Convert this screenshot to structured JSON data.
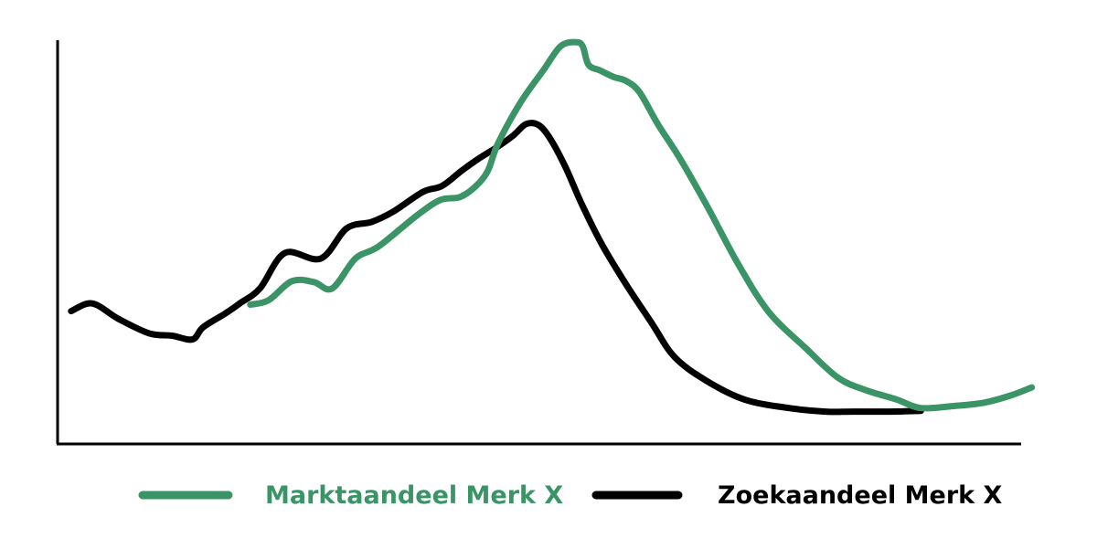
{
  "colors": {
    "market": "#3a9466",
    "search": "#000000",
    "axis": "#000000",
    "background": "#ffffff"
  },
  "legend": {
    "market_label": "Marktaandeel Merk X",
    "search_label": "Zoekaandeel Merk X"
  },
  "chart_data": {
    "type": "line",
    "title": "",
    "xlabel": "",
    "ylabel": "",
    "xlim": [
      0,
      100
    ],
    "ylim": [
      0,
      100
    ],
    "grid": false,
    "legend_position": "bottom",
    "series": [
      {
        "name": "Marktaandeel Merk X",
        "color": "#3a9466",
        "points": [
          [
            20.0,
            34.5
          ],
          [
            21.9,
            35.6
          ],
          [
            24.3,
            40.3
          ],
          [
            26.6,
            40.1
          ],
          [
            28.5,
            38.5
          ],
          [
            30.9,
            45.9
          ],
          [
            33.3,
            48.9
          ],
          [
            37.3,
            56.6
          ],
          [
            39.7,
            60.4
          ],
          [
            41.7,
            61.1
          ],
          [
            43.2,
            63.4
          ],
          [
            44.6,
            67.4
          ],
          [
            45.7,
            74.4
          ],
          [
            48.0,
            84.4
          ],
          [
            50.4,
            92.5
          ],
          [
            52.2,
            98.5
          ],
          [
            53.8,
            99.5
          ],
          [
            54.5,
            98.5
          ],
          [
            55.1,
            93.9
          ],
          [
            56.3,
            92.5
          ],
          [
            57.7,
            90.9
          ],
          [
            59.0,
            89.9
          ],
          [
            60.4,
            87.1
          ],
          [
            62.3,
            79.2
          ],
          [
            64.7,
            70.3
          ],
          [
            67.5,
            58.5
          ],
          [
            70.6,
            44.7
          ],
          [
            73.8,
            32.7
          ],
          [
            77.7,
            23.6
          ],
          [
            81.0,
            16.4
          ],
          [
            83.9,
            13.3
          ],
          [
            87.1,
            11.0
          ],
          [
            89.6,
            8.9
          ],
          [
            93.0,
            9.4
          ],
          [
            96.1,
            10.2
          ],
          [
            98.9,
            12.0
          ],
          [
            101.1,
            14.0
          ]
        ]
      },
      {
        "name": "Zoekaandeel Merk X",
        "color": "#000000",
        "points": [
          [
            1.4,
            32.9
          ],
          [
            3.6,
            34.8
          ],
          [
            6.3,
            31.0
          ],
          [
            9.5,
            27.4
          ],
          [
            11.9,
            26.8
          ],
          [
            14.0,
            25.9
          ],
          [
            15.1,
            28.9
          ],
          [
            17.4,
            32.3
          ],
          [
            18.9,
            34.8
          ],
          [
            21.0,
            38.5
          ],
          [
            23.6,
            47.3
          ],
          [
            27.3,
            45.9
          ],
          [
            30.0,
            53.4
          ],
          [
            32.6,
            55.0
          ],
          [
            34.8,
            57.5
          ],
          [
            37.9,
            62.4
          ],
          [
            39.9,
            63.9
          ],
          [
            41.9,
            67.6
          ],
          [
            43.6,
            70.5
          ],
          [
            45.6,
            73.5
          ],
          [
            47.3,
            76.4
          ],
          [
            48.6,
            79.2
          ],
          [
            49.9,
            79.0
          ],
          [
            51.1,
            75.7
          ],
          [
            52.7,
            68.6
          ],
          [
            54.4,
            59.4
          ],
          [
            56.5,
            49.4
          ],
          [
            58.9,
            39.9
          ],
          [
            61.7,
            29.8
          ],
          [
            64.0,
            21.6
          ],
          [
            67.3,
            15.7
          ],
          [
            71.3,
            11.0
          ],
          [
            75.9,
            8.9
          ],
          [
            79.7,
            8.0
          ],
          [
            82.5,
            8.0
          ],
          [
            86.3,
            8.0
          ],
          [
            89.6,
            8.2
          ]
        ]
      }
    ]
  }
}
